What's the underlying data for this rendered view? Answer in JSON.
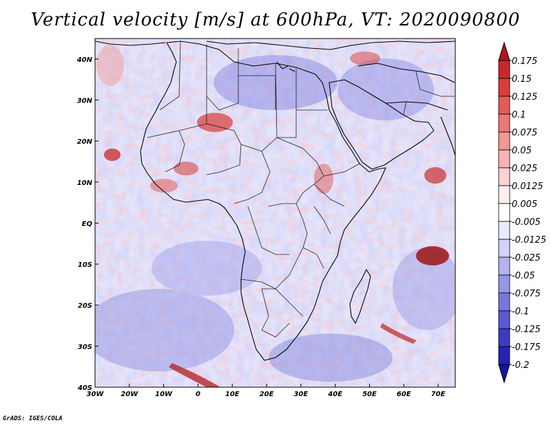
{
  "title": "Vertical velocity [m/s] at 600hPa, VT: 2020090800",
  "footer": "GrADS: IGES/COLA",
  "map": {
    "lon_range": [
      -30,
      75
    ],
    "lat_range": [
      -40,
      45
    ],
    "lon_ticks": [
      "30W",
      "20W",
      "10W",
      "0",
      "10E",
      "20E",
      "30E",
      "40E",
      "50E",
      "60E",
      "70E"
    ],
    "lat_ticks": [
      "40S",
      "30S",
      "20S",
      "10S",
      "EQ",
      "10N",
      "20N",
      "30N",
      "40N"
    ]
  },
  "colorbar": {
    "labels": [
      "0.175",
      "0.15",
      "0.125",
      "0.1",
      "0.075",
      "0.05",
      "0.025",
      "0.0125",
      "0.005",
      "-0.005",
      "-0.0125",
      "-0.025",
      "-0.05",
      "-0.075",
      "-0.1",
      "-0.125",
      "-0.175",
      "-0.2"
    ],
    "colors": [
      "#b4141e",
      "#c8282d",
      "#dc3c3c",
      "#e65a5a",
      "#ec7878",
      "#f29696",
      "#f8b4b4",
      "#fcd2d2",
      "#fff0f0",
      "#ffffff",
      "#eaeaff",
      "#d2d2fa",
      "#b4b4f0",
      "#9696e6",
      "#7878dc",
      "#5a5ad2",
      "#3c3cc3",
      "#2323b4",
      "#1414a0"
    ]
  }
}
